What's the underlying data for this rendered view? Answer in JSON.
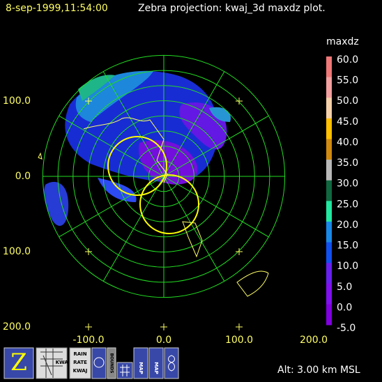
{
  "header": {
    "time": "8-sep-1999,11:54:00",
    "title": "Zebra projection: kwaj_3d maxdz plot."
  },
  "axes": {
    "x_labels": [
      "-100.0",
      "0.0",
      "100.0",
      "200.0"
    ],
    "y_labels": [
      "100.0",
      "0.0",
      "100.0",
      "200.0"
    ]
  },
  "colorbar": {
    "title": "maxdz",
    "labels": [
      "60.0",
      "55.0",
      "50.0",
      "45.0",
      "40.0",
      "35.0",
      "30.0",
      "25.0",
      "20.0",
      "15.0",
      "10.0",
      "5.0",
      "0.0",
      "-5.0"
    ]
  },
  "toolbar": {
    "zebra": "Z",
    "kwaj": "KWAJ",
    "rain": [
      "RAIN",
      "RATE",
      "KWAJ"
    ],
    "bounds": "BOUNDS",
    "map1": "MAP",
    "map2": "MAP"
  },
  "status": "Alt: 3.00 km MSL"
}
